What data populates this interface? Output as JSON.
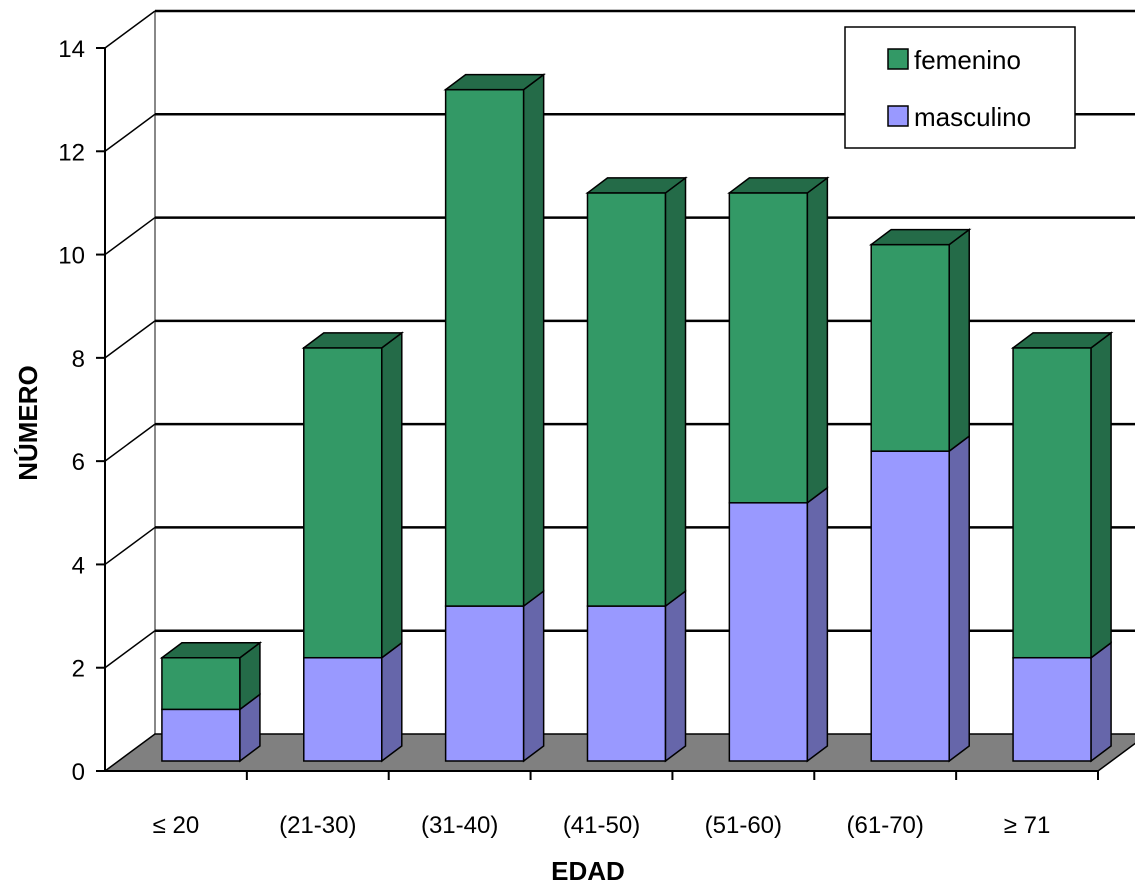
{
  "chart_data": {
    "type": "bar",
    "stacked": true,
    "three_d": true,
    "categories": [
      "≤ 20",
      "(21-30)",
      "(31-40)",
      "(41-50)",
      "(51-60)",
      "(61-70)",
      "≥ 71"
    ],
    "series": [
      {
        "name": "masculino",
        "values": [
          1,
          2,
          3,
          3,
          5,
          6,
          2
        ],
        "color": "#9999FF",
        "side_color": "#6666AA"
      },
      {
        "name": "femenino",
        "values": [
          1,
          6,
          10,
          8,
          6,
          4,
          6
        ],
        "color": "#339966",
        "side_color": "#246B48"
      }
    ],
    "xlabel": "EDAD",
    "ylabel": "NÚMERO",
    "ylim": [
      0,
      14
    ],
    "yticks": [
      0,
      2,
      4,
      6,
      8,
      10,
      12,
      14
    ],
    "grid": true,
    "legend": {
      "placement": "top-right",
      "order": [
        "femenino",
        "masculino"
      ]
    },
    "floor_color": "#808080"
  }
}
